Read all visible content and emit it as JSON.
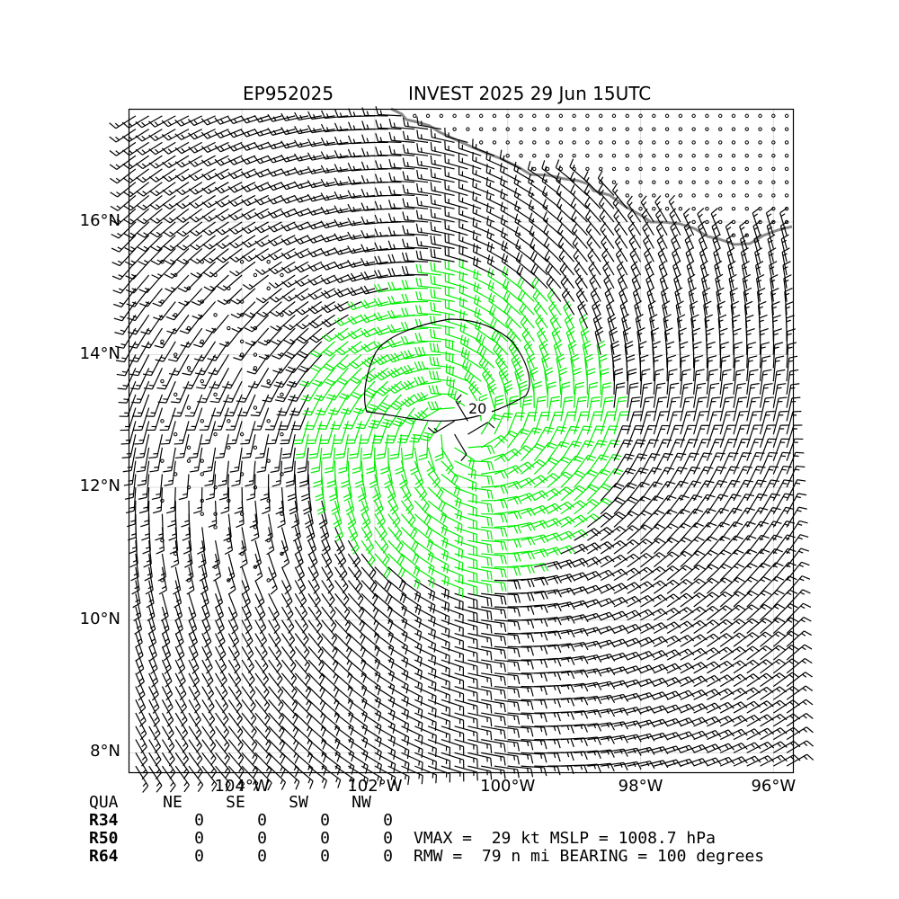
{
  "header": {
    "storm_id": "EP952025",
    "storm_title": "INVEST 2025 29 Jun 15UTC"
  },
  "map": {
    "lat_range": [
      7.7,
      17.7
    ],
    "lon_range": [
      -105.7,
      -95.7
    ],
    "lat_ticks": [
      {
        "value": 8,
        "label": "8°N"
      },
      {
        "value": 10,
        "label": "10°N"
      },
      {
        "value": 12,
        "label": "12°N"
      },
      {
        "value": 14,
        "label": "14°N"
      },
      {
        "value": 16,
        "label": "16°N"
      }
    ],
    "lon_ticks": [
      {
        "value": -104,
        "label": "104°W"
      },
      {
        "value": -102,
        "label": "102°W"
      },
      {
        "value": -100,
        "label": "100°W"
      },
      {
        "value": -98,
        "label": "98°W"
      },
      {
        "value": -96,
        "label": "96°W"
      }
    ],
    "center": {
      "lat": 12.9,
      "lon": -100.7
    },
    "contour_label": "20",
    "colors": {
      "barb": "#000000",
      "strong_barb": "#00ee00",
      "coast": "#888888",
      "grid": "#dddddd"
    }
  },
  "radii_table": {
    "header": [
      "QUA",
      "NE",
      "SE",
      "SW",
      "NW"
    ],
    "rows": [
      {
        "label": "R34",
        "values": [
          "0",
          "0",
          "0",
          "0"
        ]
      },
      {
        "label": "R50",
        "values": [
          "0",
          "0",
          "0",
          "0"
        ]
      },
      {
        "label": "R64",
        "values": [
          "0",
          "0",
          "0",
          "0"
        ]
      }
    ]
  },
  "stats": {
    "line1": "VMAX =  29 kt MSLP = 1008.7 hPa",
    "line2": "RMW =  79 n mi BEARING = 100 degrees"
  }
}
